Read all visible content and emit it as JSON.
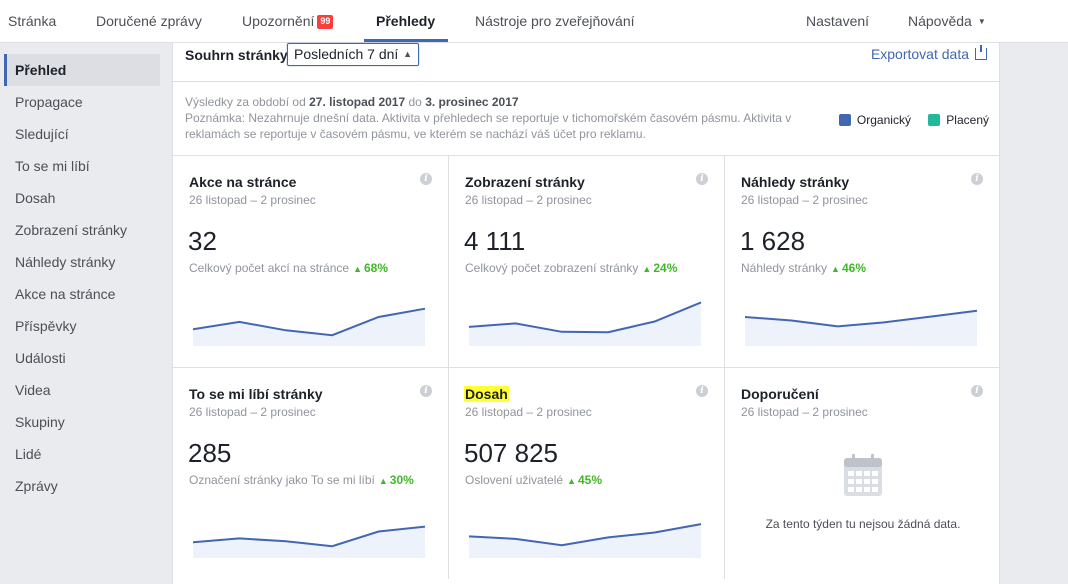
{
  "topnav": {
    "tabs": [
      {
        "label": "Stránka"
      },
      {
        "label": "Doručené zprávy"
      },
      {
        "label": "Upozornění",
        "badge": "99"
      },
      {
        "label": "Přehledy"
      },
      {
        "label": "Nástroje pro zveřejňování"
      }
    ],
    "settings": "Nastavení",
    "help": "Nápověda"
  },
  "sidebar": {
    "items": [
      {
        "label": "Přehled"
      },
      {
        "label": "Propagace"
      },
      {
        "label": "Sledující"
      },
      {
        "label": "To se mi líbí"
      },
      {
        "label": "Dosah"
      },
      {
        "label": "Zobrazení stránky"
      },
      {
        "label": "Náhledy stránky"
      },
      {
        "label": "Akce na stránce"
      },
      {
        "label": "Příspěvky"
      },
      {
        "label": "Události"
      },
      {
        "label": "Videa"
      },
      {
        "label": "Skupiny"
      },
      {
        "label": "Lidé"
      },
      {
        "label": "Zprávy"
      }
    ]
  },
  "summary": {
    "label": "Souhrn stránky",
    "range": "Posledních 7 dní",
    "export": "Exportovat data"
  },
  "info": {
    "prefix": "Výsledky za období od",
    "from": "27. listopad 2017",
    "mid": "do",
    "to": "3. prosinec 2017",
    "note": "Poznámka: Nezahrnuje dnešní data. Aktivita v přehledech se reportuje v tichomořském časovém pásmu. Aktivita v reklamách se reportuje v časovém pásmu, ve kterém se nachází váš účet pro reklamu."
  },
  "legend": {
    "organic": {
      "label": "Organický",
      "color": "#4267b2"
    },
    "paid": {
      "label": "Placený",
      "color": "#23b899"
    }
  },
  "cards": [
    {
      "title": "Akce na stránce",
      "date": "26 listopad – 2 prosinec",
      "value": "32",
      "subtitle": "Celkový počet akcí na stránce",
      "delta": "68%",
      "trend": [
        0.3,
        0.45,
        0.28,
        0.18,
        0.55,
        0.72
      ]
    },
    {
      "title": "Zobrazení stránky",
      "date": "26 listopad – 2 prosinec",
      "value": "4 111",
      "subtitle": "Celkový počet zobrazení stránky",
      "delta": "24%",
      "trend": [
        0.35,
        0.42,
        0.25,
        0.24,
        0.46,
        0.85
      ]
    },
    {
      "title": "Náhledy stránky",
      "date": "26 listopad – 2 prosinec",
      "value": "1 628",
      "subtitle": "Náhledy stránky",
      "delta": "46%",
      "trend": [
        0.55,
        0.48,
        0.36,
        0.44,
        0.56,
        0.68
      ]
    },
    {
      "title": "To se mi líbí stránky",
      "date": "26 listopad – 2 prosinec",
      "value": "285",
      "subtitle": "Označení stránky jako To se mi líbí",
      "delta": "30%",
      "trend": [
        0.28,
        0.36,
        0.3,
        0.2,
        0.5,
        0.6
      ]
    },
    {
      "title": "Dosah",
      "date": "26 listopad – 2 prosinec",
      "value": "507 825",
      "subtitle": "Oslovení uživatelé",
      "delta": "45%",
      "trend": [
        0.4,
        0.35,
        0.22,
        0.38,
        0.48,
        0.65
      ]
    },
    {
      "title": "Doporučení",
      "date": "26 listopad – 2 prosinec",
      "empty": "Za tento týden tu nejsou žádná data."
    }
  ],
  "icons": {
    "info": "info-icon",
    "calendar": "calendar-icon",
    "export": "export-icon",
    "caret": "chevron-down-icon"
  }
}
